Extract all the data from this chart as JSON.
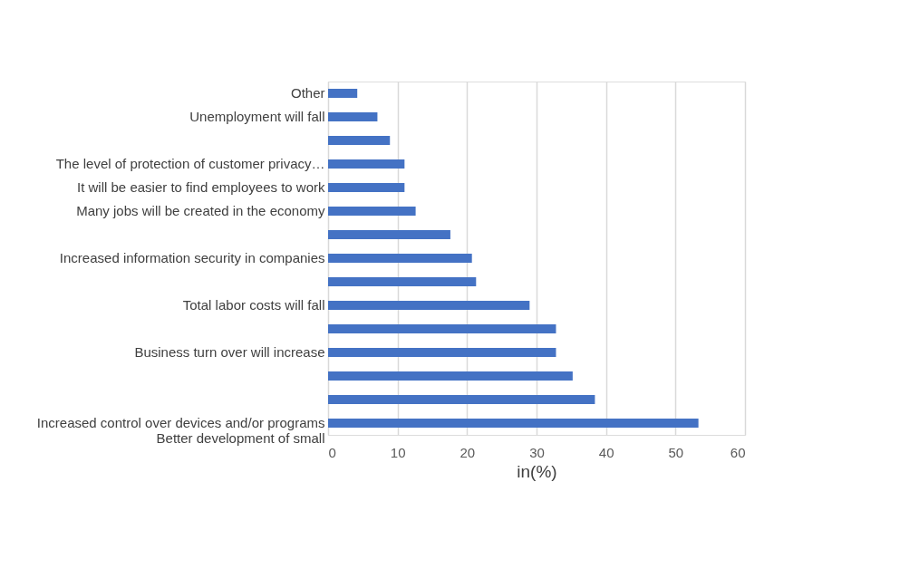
{
  "chart_data": {
    "type": "bar",
    "orientation": "horizontal",
    "xlabel": "in(%)",
    "categories": [
      "Other",
      "Unemployment will fall",
      null,
      "The level of protection of customer privacy…",
      "It will be easier to find employees to work",
      "Many jobs will be created in the economy",
      null,
      "Increased information security in companies",
      null,
      "Total labor costs will fall",
      null,
      "Business turn over will increase",
      null,
      null,
      "Increased control over devices and/or programs Better development of small"
    ],
    "values": [
      4.2,
      7.1,
      8.9,
      11.0,
      11.0,
      12.6,
      17.6,
      20.7,
      21.3,
      29.0,
      32.8,
      32.8,
      35.2,
      38.4,
      53.3
    ],
    "color": "#4472c4",
    "xlim": [
      0,
      60
    ],
    "xticks": [
      0,
      10,
      20,
      30,
      40,
      50,
      60
    ],
    "grid": "x"
  }
}
